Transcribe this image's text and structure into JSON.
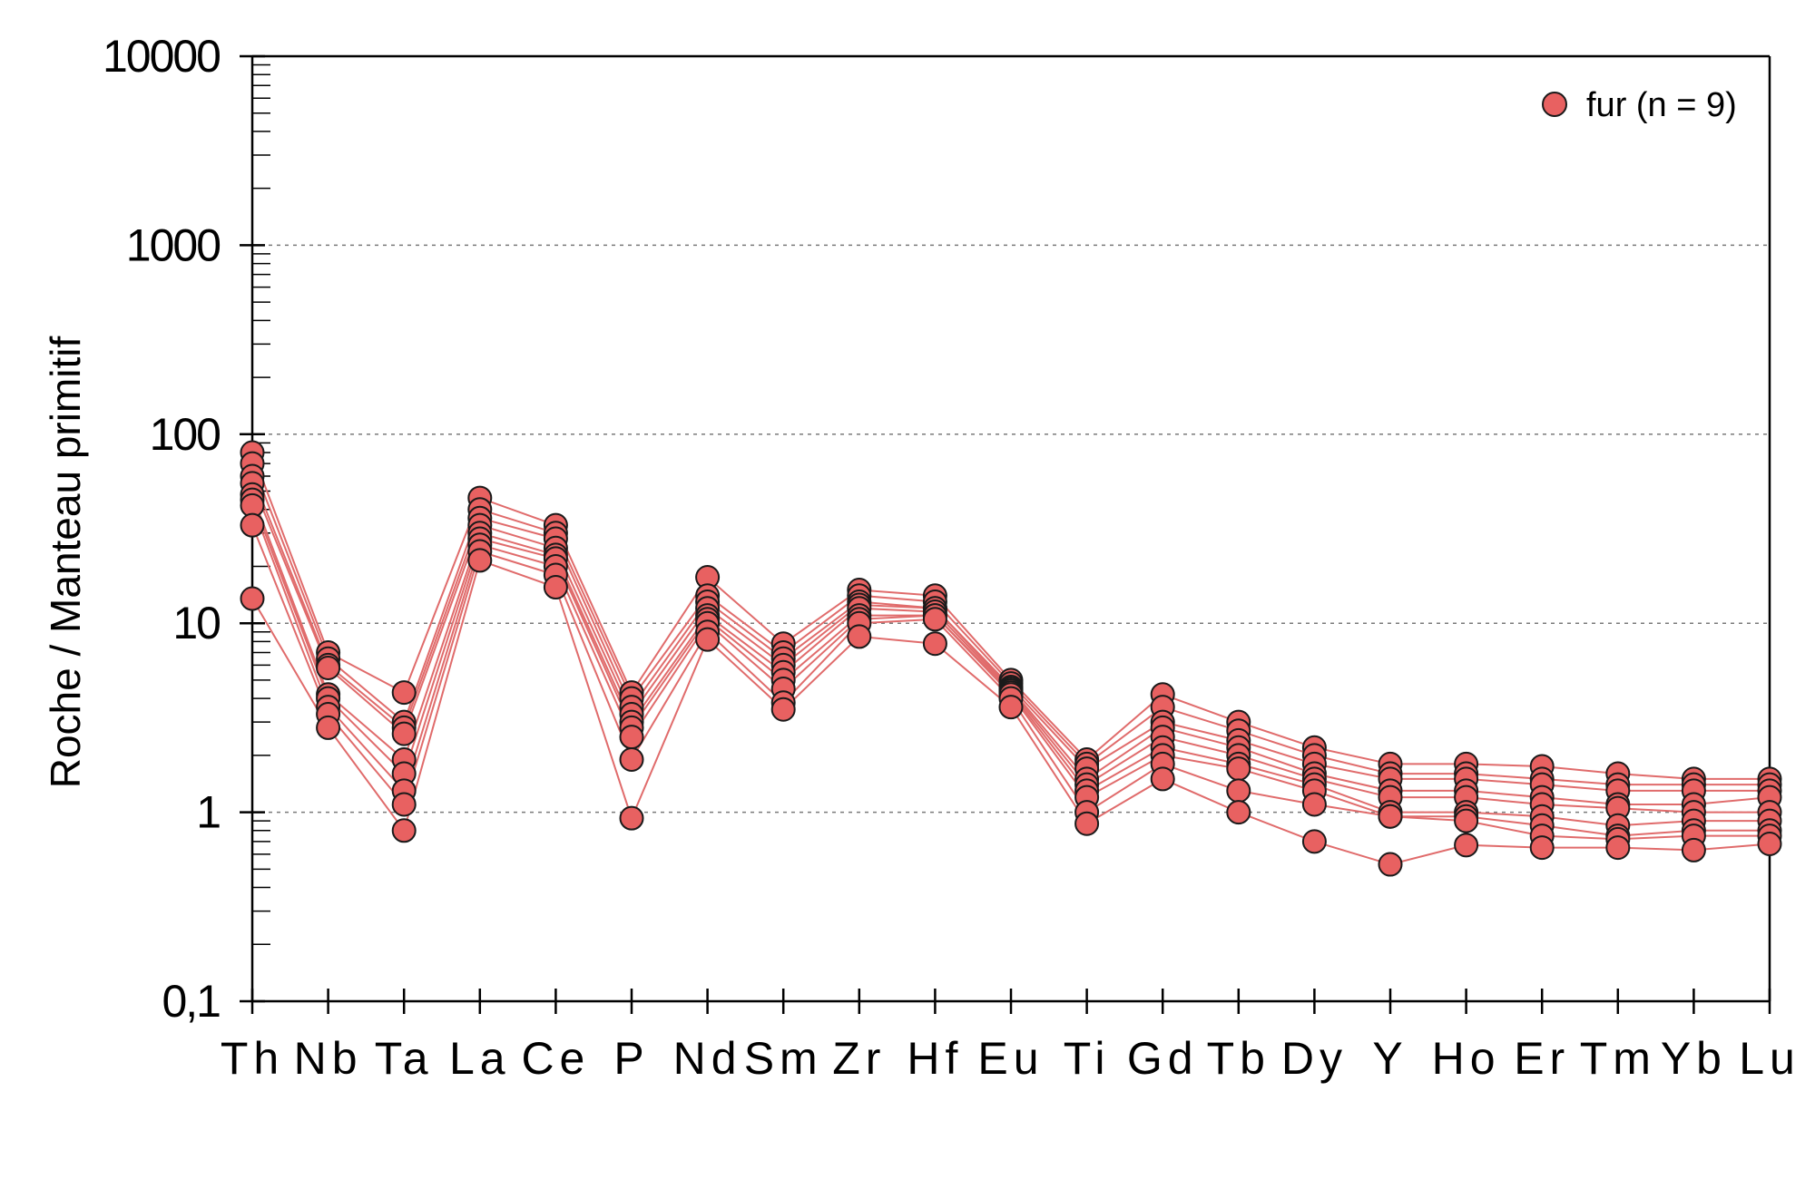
{
  "chart_data": {
    "type": "line",
    "title": "",
    "xlabel": "",
    "ylabel": "Roche / Manteau primitif",
    "yscale": "log",
    "ylim": [
      0.1,
      10000
    ],
    "y_tick_labels": [
      "0,1",
      "1",
      "10",
      "100",
      "1000",
      "10000"
    ],
    "grid": "horizontal-dashed-at-decades",
    "legend": {
      "position": "top-right",
      "label": "fur (n = 9)"
    },
    "categories": [
      "Th",
      "Nb",
      "Ta",
      "La",
      "Ce",
      "P",
      "Nd",
      "Sm",
      "Zr",
      "Hf",
      "Eu",
      "Ti",
      "Gd",
      "Tb",
      "Dy",
      "Y",
      "Ho",
      "Er",
      "Tm",
      "Yb",
      "Lu"
    ],
    "series": [
      {
        "values": [
          80,
          7.0,
          4.3,
          46,
          33,
          4.3,
          17.5,
          7.8,
          15,
          14,
          5.0,
          1.9,
          4.2,
          3.0,
          2.2,
          1.8,
          1.8,
          1.75,
          1.6,
          1.5,
          1.5
        ]
      },
      {
        "values": [
          70,
          6.5,
          3.0,
          40,
          30,
          4.0,
          14,
          7.0,
          14,
          13,
          4.8,
          1.8,
          3.6,
          2.7,
          2.0,
          1.6,
          1.6,
          1.5,
          1.4,
          1.4,
          1.4
        ]
      },
      {
        "values": [
          60,
          6.0,
          2.8,
          36,
          28,
          3.6,
          13,
          6.5,
          13,
          12,
          4.6,
          1.7,
          3.0,
          2.4,
          1.8,
          1.5,
          1.5,
          1.4,
          1.3,
          1.3,
          1.3
        ]
      },
      {
        "values": [
          55,
          5.8,
          2.6,
          33,
          25,
          3.3,
          12,
          6.0,
          12.5,
          12,
          4.5,
          1.5,
          2.8,
          2.2,
          1.6,
          1.3,
          1.3,
          1.2,
          1.1,
          1.1,
          1.2
        ]
      },
      {
        "values": [
          48,
          4.2,
          1.9,
          30,
          23,
          3.0,
          11,
          5.5,
          12,
          11.5,
          4.4,
          1.4,
          2.5,
          2.0,
          1.5,
          1.2,
          1.2,
          1.1,
          1.05,
          1.0,
          1.0
        ]
      },
      {
        "values": [
          45,
          4.0,
          1.6,
          28,
          22,
          2.8,
          10.5,
          5.0,
          11,
          11,
          4.3,
          1.3,
          2.2,
          1.8,
          1.4,
          1.0,
          1.0,
          0.95,
          0.85,
          0.9,
          0.9
        ]
      },
      {
        "values": [
          42,
          3.6,
          1.3,
          26,
          20,
          2.5,
          10,
          4.5,
          10.5,
          11,
          4.2,
          1.2,
          2.0,
          1.7,
          1.3,
          0.95,
          0.95,
          0.85,
          0.75,
          0.8,
          0.8
        ]
      },
      {
        "values": [
          33,
          3.3,
          1.1,
          24,
          18,
          1.9,
          9.0,
          3.8,
          10,
          10.5,
          4.0,
          1.0,
          1.8,
          1.3,
          1.1,
          0.95,
          0.9,
          0.75,
          0.72,
          0.75,
          0.75
        ]
      },
      {
        "values": [
          13.5,
          2.8,
          0.8,
          21.5,
          15.5,
          0.93,
          8.2,
          3.5,
          8.5,
          7.8,
          3.6,
          0.87,
          1.5,
          1.0,
          0.7,
          0.53,
          0.67,
          0.65,
          0.65,
          0.63,
          0.68
        ]
      }
    ],
    "colors": {
      "line": "#e06b6b",
      "marker_fill": "#e86161",
      "marker_stroke": "#1a1a1a",
      "grid": "#7a7a7a",
      "axis": "#000000"
    }
  }
}
